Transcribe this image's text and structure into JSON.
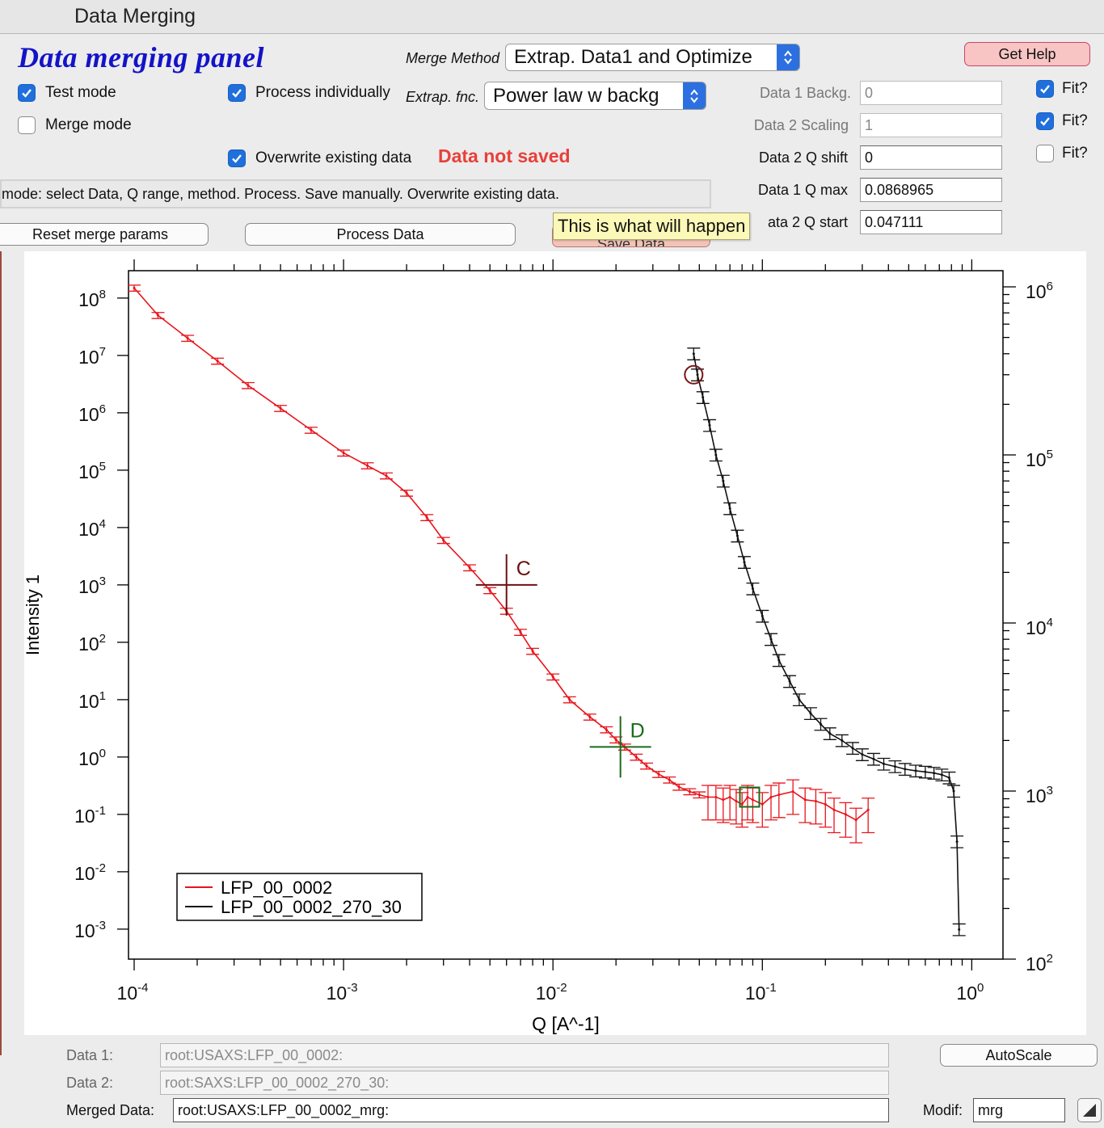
{
  "window": {
    "title": "Data Merging"
  },
  "panel": {
    "title": "Data merging  panel"
  },
  "options": {
    "test_mode": {
      "label": "Test mode",
      "checked": true
    },
    "merge_mode": {
      "label": "Merge mode",
      "checked": false
    },
    "process_individually": {
      "label": "Process individually",
      "checked": true
    },
    "overwrite": {
      "label": "Overwrite existing data",
      "checked": true
    }
  },
  "merge_method": {
    "label": "Merge Method",
    "value": "Extrap. Data1 and Optimize"
  },
  "extrap_fnc": {
    "label": "Extrap. fnc.",
    "value": "Power law w backg"
  },
  "status": {
    "not_saved": "Data not saved",
    "message": "mode: select Data, Q range, method. Process. Save manually. Overwrite existing data."
  },
  "buttons": {
    "get_help": "Get Help",
    "reset": "Reset merge params",
    "process": "Process Data",
    "save": "Save Data",
    "autoscale": "AutoScale"
  },
  "tooltip": "This is what will happen",
  "params": [
    {
      "label": "Data 1 Backg.",
      "value": "0",
      "dim": true,
      "fit_label": "Fit?",
      "fit": true
    },
    {
      "label": "Data 2 Scaling",
      "value": "1",
      "dim": true,
      "fit_label": "Fit?",
      "fit": true
    },
    {
      "label": "Data 2 Q shift",
      "value": "0",
      "dim": false,
      "fit_label": "Fit?",
      "fit": false
    },
    {
      "label": "Data 1 Q max",
      "value": "0.0868965",
      "dim": false
    },
    {
      "label": "ata 2 Q start",
      "value": "0.047111",
      "dim": false
    }
  ],
  "bottom": {
    "data1_label": "Data 1:",
    "data1_value": "root:USAXS:LFP_00_0002:",
    "data2_label": "Data 2:",
    "data2_value": "root:SAXS:LFP_00_0002_270_30:",
    "merged_label": "Merged Data:",
    "merged_value": "root:USAXS:LFP_00_0002_mrg:",
    "modif_label": "Modif:",
    "modif_value": "mrg"
  },
  "colors": {
    "series1": "#e8141b",
    "series2": "#111111",
    "cursor_c": "#6b1010",
    "cursor_d": "#1a6b1a",
    "title": "#1313c8"
  },
  "chart_data": {
    "type": "scatter",
    "xlabel": "Q [A^-1]",
    "ylabel": "Intensity 1",
    "x_scale": "log",
    "y_scale": "log",
    "xlim": [
      0.0001,
      1.5
    ],
    "ylim_left": [
      0.0003,
      300000000
    ],
    "ylim_right": [
      100,
      1000000
    ],
    "x_ticks": [
      {
        "base": "10",
        "exp": "-4",
        "v": 0.0001
      },
      {
        "base": "10",
        "exp": "-3",
        "v": 0.001
      },
      {
        "base": "10",
        "exp": "-2",
        "v": 0.01
      },
      {
        "base": "10",
        "exp": "-1",
        "v": 0.1
      },
      {
        "base": "10",
        "exp": "0",
        "v": 1
      }
    ],
    "y_ticks_left": [
      {
        "base": "10",
        "exp": "8",
        "v": 100000000
      },
      {
        "base": "10",
        "exp": "7",
        "v": 10000000
      },
      {
        "base": "10",
        "exp": "6",
        "v": 1000000
      },
      {
        "base": "10",
        "exp": "5",
        "v": 100000
      },
      {
        "base": "10",
        "exp": "4",
        "v": 10000
      },
      {
        "base": "10",
        "exp": "3",
        "v": 1000
      },
      {
        "base": "10",
        "exp": "2",
        "v": 100
      },
      {
        "base": "10",
        "exp": "1",
        "v": 10
      },
      {
        "base": "10",
        "exp": "0",
        "v": 1
      },
      {
        "base": "10",
        "exp": "-1",
        "v": 0.1
      },
      {
        "base": "10",
        "exp": "-2",
        "v": 0.01
      },
      {
        "base": "10",
        "exp": "-3",
        "v": 0.001
      }
    ],
    "y_ticks_right": [
      {
        "base": "10",
        "exp": "6",
        "v": 1000000
      },
      {
        "base": "10",
        "exp": "5",
        "v": 100000
      },
      {
        "base": "10",
        "exp": "4",
        "v": 10000
      },
      {
        "base": "10",
        "exp": "3",
        "v": 1000
      },
      {
        "base": "10",
        "exp": "2",
        "v": 100
      }
    ],
    "series": [
      {
        "name": "LFP_00_0002",
        "axis": "left",
        "x": [
          0.0001,
          0.00013,
          0.00018,
          0.00025,
          0.00035,
          0.0005,
          0.0007,
          0.001,
          0.0013,
          0.0016,
          0.002,
          0.0025,
          0.003,
          0.004,
          0.005,
          0.006,
          0.007,
          0.008,
          0.01,
          0.012,
          0.015,
          0.018,
          0.02,
          0.022,
          0.025,
          0.028,
          0.032,
          0.036,
          0.04,
          0.045,
          0.05,
          0.055,
          0.06,
          0.065,
          0.07,
          0.075,
          0.08,
          0.085,
          0.09,
          0.1,
          0.11,
          0.12,
          0.14,
          0.16,
          0.18,
          0.2,
          0.22,
          0.25,
          0.28,
          0.32
        ],
        "y": [
          150000000,
          50000000,
          20000000,
          8000000,
          3000000,
          1200000,
          500000,
          200000,
          120000,
          80000,
          40000,
          15000,
          6000,
          2000,
          800,
          350,
          150,
          70,
          25,
          10,
          5,
          3,
          2,
          1.5,
          1,
          0.7,
          0.5,
          0.4,
          0.3,
          0.25,
          0.22,
          0.2,
          0.2,
          0.18,
          0.2,
          0.17,
          0.15,
          0.2,
          0.18,
          0.15,
          0.2,
          0.22,
          0.25,
          0.18,
          0.17,
          0.15,
          0.12,
          0.1,
          0.08,
          0.12
        ]
      },
      {
        "name": "LFP_00_0002_270_30",
        "axis": "right",
        "x": [
          0.047,
          0.049,
          0.052,
          0.056,
          0.06,
          0.065,
          0.07,
          0.076,
          0.082,
          0.09,
          0.1,
          0.11,
          0.12,
          0.135,
          0.15,
          0.17,
          0.19,
          0.21,
          0.24,
          0.27,
          0.3,
          0.34,
          0.38,
          0.43,
          0.48,
          0.54,
          0.6,
          0.66,
          0.72,
          0.78,
          0.82,
          0.85,
          0.87
        ],
        "y": [
          400000,
          300000,
          220000,
          150000,
          100000,
          70000,
          48000,
          33000,
          23000,
          16000,
          11000,
          8000,
          6000,
          4500,
          3500,
          2900,
          2500,
          2200,
          2000,
          1800,
          1650,
          1550,
          1450,
          1400,
          1350,
          1320,
          1300,
          1280,
          1250,
          1200,
          1000,
          500,
          150
        ]
      }
    ],
    "cursors": [
      {
        "label": "C",
        "x": 0.006,
        "y": 1000,
        "axis": "left"
      },
      {
        "label": "D",
        "x": 0.021,
        "y": 1.5,
        "axis": "left"
      }
    ],
    "legend": "bottom-left",
    "grid": false
  }
}
